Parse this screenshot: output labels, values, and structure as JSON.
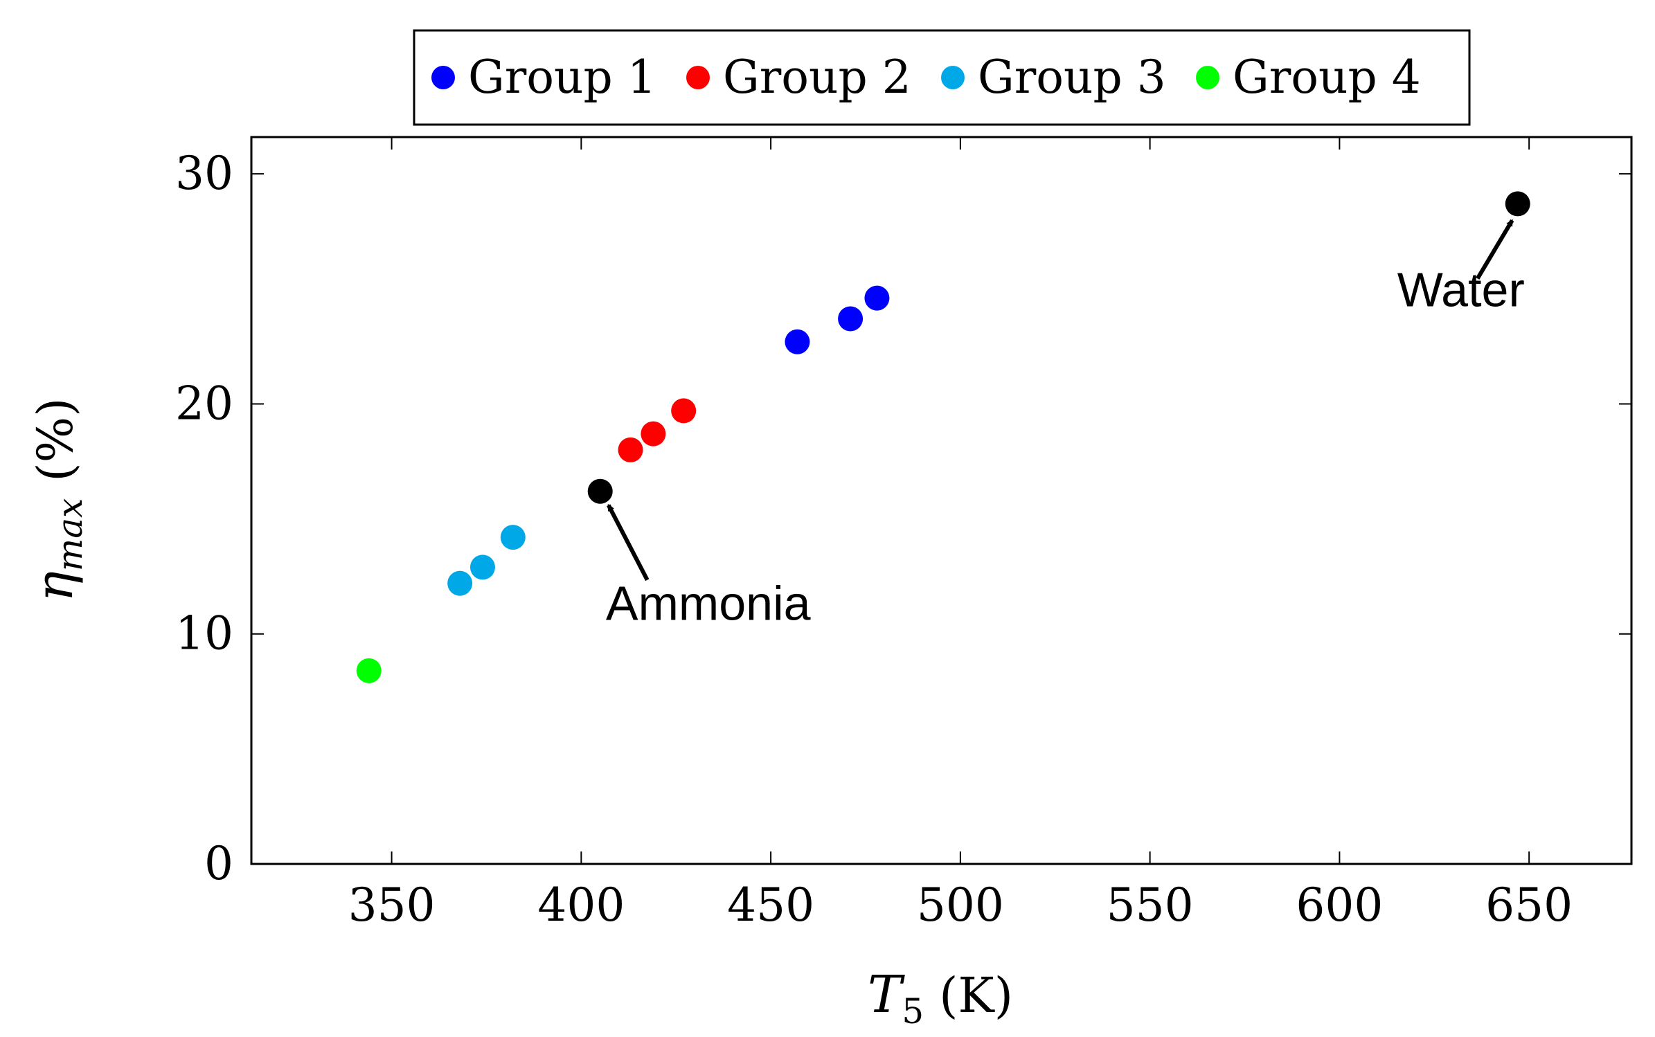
{
  "chart_data": {
    "type": "scatter",
    "title": "",
    "xlabel": {
      "symbol": "T",
      "subscript": "5",
      "unit": "(K)"
    },
    "ylabel": {
      "symbol": "η",
      "subscript": "max",
      "unit": "(%)"
    },
    "xlim": [
      313,
      677
    ],
    "ylim": [
      0,
      31.6
    ],
    "xticks": [
      350,
      400,
      450,
      500,
      550,
      600,
      650
    ],
    "yticks": [
      0,
      10,
      20,
      30
    ],
    "xtick_labels": [
      "350",
      "400",
      "450",
      "500",
      "550",
      "600",
      "650"
    ],
    "ytick_labels": [
      "0",
      "10",
      "20",
      "30"
    ],
    "legend_position": "top-center",
    "series": [
      {
        "name": "Group 1",
        "color": "#0000ff",
        "points": [
          [
            457,
            22.7
          ],
          [
            471,
            23.7
          ],
          [
            478,
            24.6
          ]
        ]
      },
      {
        "name": "Group 2",
        "color": "#ff0000",
        "points": [
          [
            413,
            18.0
          ],
          [
            419,
            18.7
          ],
          [
            427,
            19.7
          ]
        ]
      },
      {
        "name": "Group 3",
        "color": "#00a8e8",
        "points": [
          [
            368,
            12.2
          ],
          [
            374,
            12.9
          ],
          [
            382,
            14.2
          ]
        ]
      },
      {
        "name": "Group 4",
        "color": "#00ff00",
        "points": [
          [
            344,
            8.4
          ]
        ]
      }
    ],
    "annotations": [
      {
        "label": "Ammonia",
        "color": "#000000",
        "point": [
          405,
          16.2
        ]
      },
      {
        "label": "Water",
        "color": "#000000",
        "point": [
          647,
          28.7
        ]
      }
    ]
  }
}
